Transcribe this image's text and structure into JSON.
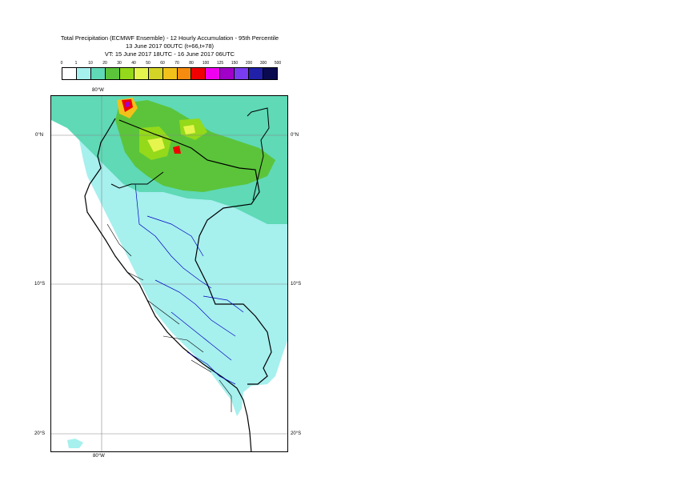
{
  "title": {
    "line1": "Total Precipitation (ECMWF Ensemble) - 12 Hourly Accumulation - 95th Percentile",
    "line2": "13 June 2017 00UTC (t+66,t+78)",
    "line3": "VT: 15 June 2017 18UTC - 16 June 2017 06UTC"
  },
  "legend": {
    "labels": [
      "0",
      "1",
      "10",
      "20",
      "30",
      "40",
      "50",
      "60",
      "70",
      "80",
      "100",
      "125",
      "150",
      "200",
      "300",
      "500"
    ],
    "colors": [
      "#ffffff",
      "#a6f0ee",
      "#5fd9b6",
      "#5bc43a",
      "#94d91a",
      "#e6f54d",
      "#d4d426",
      "#f2c21a",
      "#f58c0f",
      "#f00000",
      "#f000f0",
      "#a000c8",
      "#7a3cf0",
      "#2020a8",
      "#0a0a50"
    ]
  },
  "grid_labels": {
    "lon_top": "80°W",
    "lon_bottom": "80°W",
    "lat_0_left": "0°N",
    "lat_0_right": "0°N",
    "lat_10_left": "10°S",
    "lat_10_right": "10°S",
    "lat_20_left": "20°S",
    "lat_20_right": "20°S"
  },
  "map": {
    "region": "Peru and surroundings",
    "colors": {
      "light_cyan": "#a6f0ee",
      "teal": "#5fd9b6",
      "green": "#5bc43a",
      "lime": "#94d91a",
      "yellow": "#e6f54d",
      "orange": "#f2c21a",
      "red": "#f00000",
      "purple": "#a000c8",
      "border": "#000000",
      "admin": "#0000c0"
    }
  }
}
